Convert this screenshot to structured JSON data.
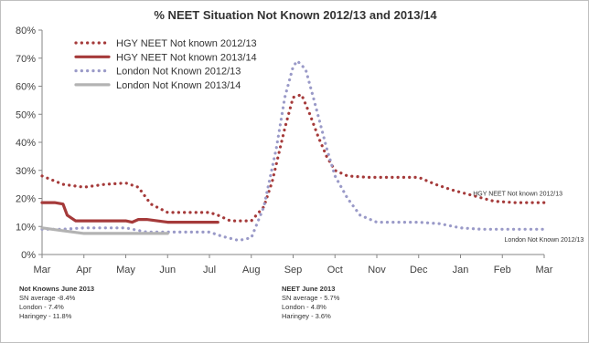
{
  "chart_data": {
    "type": "line",
    "title": "% NEET Situation Not Known 2012/13 and 2013/14",
    "xlabel": "",
    "ylabel": "",
    "categories": [
      "Mar",
      "Apr",
      "May",
      "Jun",
      "Jul",
      "Aug",
      "Sep",
      "Oct",
      "Nov",
      "Dec",
      "Jan",
      "Feb",
      "Mar"
    ],
    "y_tick_labels": [
      "0%",
      "10%",
      "20%",
      "30%",
      "40%",
      "50%",
      "60%",
      "70%",
      "80%"
    ],
    "ylim": [
      0,
      80
    ],
    "grid": false,
    "legend_position": "top-left",
    "series": [
      {
        "name": "HGY NEET Not known 2012/13",
        "color": "#a53a3a",
        "style": "dotted",
        "points": [
          [
            0,
            28
          ],
          [
            0.5,
            25
          ],
          [
            1,
            24
          ],
          [
            1.5,
            25
          ],
          [
            2,
            25.5
          ],
          [
            2.3,
            24
          ],
          [
            2.6,
            18
          ],
          [
            3,
            15
          ],
          [
            3.5,
            15
          ],
          [
            4,
            15
          ],
          [
            4.2,
            14
          ],
          [
            4.5,
            12
          ],
          [
            5,
            12
          ],
          [
            5.3,
            17
          ],
          [
            5.5,
            26
          ],
          [
            5.8,
            45
          ],
          [
            6,
            56
          ],
          [
            6.2,
            57
          ],
          [
            6.4,
            50
          ],
          [
            6.6,
            42
          ],
          [
            6.8,
            35
          ],
          [
            7,
            30
          ],
          [
            7.3,
            28
          ],
          [
            7.8,
            27.5
          ],
          [
            8.5,
            27.5
          ],
          [
            9,
            27.5
          ],
          [
            9.4,
            25
          ],
          [
            9.8,
            23
          ],
          [
            10.3,
            21
          ],
          [
            10.8,
            19
          ],
          [
            11.3,
            18.5
          ],
          [
            12,
            18.5
          ]
        ]
      },
      {
        "name": "HGY NEET Not known 2013/14",
        "color": "#a53a3a",
        "style": "solid",
        "points": [
          [
            0,
            18.5
          ],
          [
            0.3,
            18.5
          ],
          [
            0.5,
            18
          ],
          [
            0.6,
            14
          ],
          [
            0.8,
            12
          ],
          [
            1,
            12
          ],
          [
            1.5,
            12
          ],
          [
            2,
            12
          ],
          [
            2.15,
            11.5
          ],
          [
            2.3,
            12.5
          ],
          [
            2.5,
            12.5
          ],
          [
            3,
            11.5
          ],
          [
            3.5,
            11.5
          ],
          [
            4,
            11.5
          ],
          [
            4.2,
            11.5
          ]
        ]
      },
      {
        "name": "London Not Known 2012/13",
        "color": "#9a9ac8",
        "style": "dotted",
        "points": [
          [
            0,
            9
          ],
          [
            0.5,
            9
          ],
          [
            1,
            9.5
          ],
          [
            1.5,
            9.5
          ],
          [
            2,
            9.5
          ],
          [
            2.5,
            8
          ],
          [
            3,
            8
          ],
          [
            3.5,
            8
          ],
          [
            4,
            8
          ],
          [
            4.3,
            6.5
          ],
          [
            4.7,
            5
          ],
          [
            5,
            6
          ],
          [
            5.3,
            17
          ],
          [
            5.6,
            38
          ],
          [
            5.8,
            56
          ],
          [
            6,
            67
          ],
          [
            6.1,
            69
          ],
          [
            6.3,
            66
          ],
          [
            6.5,
            55
          ],
          [
            6.8,
            38
          ],
          [
            7,
            28
          ],
          [
            7.3,
            20
          ],
          [
            7.6,
            14
          ],
          [
            8,
            11.5
          ],
          [
            8.5,
            11.5
          ],
          [
            9,
            11.5
          ],
          [
            9.5,
            11
          ],
          [
            10,
            9.5
          ],
          [
            10.5,
            9
          ],
          [
            11,
            9
          ],
          [
            11.5,
            9
          ],
          [
            12,
            9
          ]
        ]
      },
      {
        "name": "London Not Known 2013/14",
        "color": "#b3b3b3",
        "style": "solid",
        "points": [
          [
            0,
            9.5
          ],
          [
            0.5,
            8.5
          ],
          [
            1,
            7.5
          ],
          [
            1.5,
            7.5
          ],
          [
            2,
            7.5
          ],
          [
            2.5,
            7.5
          ],
          [
            3,
            7.5
          ]
        ]
      }
    ],
    "annotations": [
      {
        "text": "HGY NEET Not known 2012/13",
        "x": 10.3,
        "y": 21
      },
      {
        "text": "London Not Known 2012/13",
        "x": 11.05,
        "y": 4.5
      }
    ]
  },
  "notes": [
    {
      "heading": "Not Knowns June 2013",
      "lines": [
        "SN average -8.4%",
        "London - 7.4%",
        "Haringey - 11.8%"
      ]
    },
    {
      "heading": "NEET June 2013",
      "lines": [
        "SN average - 5.7%",
        "London - 4.8%",
        "Haringey - 3.6%"
      ]
    }
  ]
}
